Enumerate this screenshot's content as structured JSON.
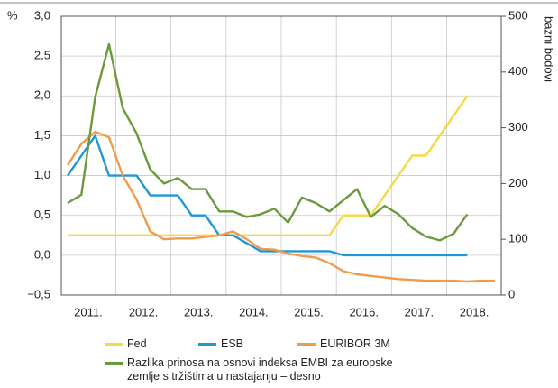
{
  "chart_data": {
    "type": "line",
    "y_label": "%",
    "y2_label": "bazni bodovi",
    "categories": [
      null,
      "2011.",
      null,
      null,
      null,
      "2012.",
      null,
      null,
      null,
      "2013.",
      null,
      null,
      null,
      "2014.",
      null,
      null,
      null,
      "2015.",
      null,
      null,
      null,
      "2016.",
      null,
      null,
      null,
      "2017.",
      null,
      null,
      null,
      "2018.",
      null,
      null
    ],
    "ylim": [
      -0.5,
      3.0
    ],
    "yticks": [
      {
        "value": -0.5,
        "label": "−0,5"
      },
      {
        "value": 0,
        "label": "0,0"
      },
      {
        "value": 0.5,
        "label": "0,5"
      },
      {
        "value": 1.0,
        "label": "1,0"
      },
      {
        "value": 1.5,
        "label": "1,5"
      },
      {
        "value": 2.0,
        "label": "2,0"
      },
      {
        "value": 2.5,
        "label": "2,5"
      },
      {
        "value": 3.0,
        "label": "3,0"
      }
    ],
    "y2lim": [
      0,
      500
    ],
    "y2ticks": [
      0,
      100,
      200,
      300,
      400,
      500
    ],
    "grid": true,
    "legend": "bottom",
    "series": [
      {
        "name": "Fed",
        "color": "#f6d943",
        "values": [
          0.25,
          0.25,
          0.25,
          0.25,
          0.25,
          0.25,
          0.25,
          0.25,
          0.25,
          0.25,
          0.25,
          0.25,
          0.25,
          0.25,
          0.25,
          0.25,
          0.25,
          0.25,
          0.25,
          0.25,
          0.5,
          0.5,
          0.5,
          0.75,
          1.0,
          1.25,
          1.25,
          1.5,
          1.75,
          2.0,
          null,
          null
        ]
      },
      {
        "name": "ESB",
        "color": "#1f97d4",
        "values": [
          1.0,
          1.25,
          1.5,
          1.0,
          1.0,
          1.0,
          0.75,
          0.75,
          0.75,
          0.5,
          0.5,
          0.25,
          0.25,
          0.15,
          0.05,
          0.05,
          0.05,
          0.05,
          0.05,
          0.05,
          0.0,
          0.0,
          0.0,
          0.0,
          0.0,
          0.0,
          0.0,
          0.0,
          0.0,
          0.0,
          null,
          null
        ]
      },
      {
        "name": "EURIBOR 3M",
        "color": "#f29a4b",
        "values": [
          1.13,
          1.4,
          1.55,
          1.48,
          1.0,
          0.7,
          0.3,
          0.2,
          0.21,
          0.21,
          0.23,
          0.25,
          0.3,
          0.2,
          0.08,
          0.07,
          0.02,
          -0.01,
          -0.03,
          -0.1,
          -0.2,
          -0.24,
          -0.26,
          -0.28,
          -0.3,
          -0.31,
          -0.32,
          -0.32,
          -0.32,
          -0.33,
          -0.32,
          -0.32
        ]
      },
      {
        "name": "Razlika prinosa na osnovi indeksa EMBI za europske zemlje s tržištima u nastajanju – desno",
        "color": "#6b9a3b",
        "axis": "y2",
        "values": [
          165,
          180,
          355,
          450,
          335,
          290,
          225,
          200,
          210,
          190,
          190,
          150,
          150,
          140,
          145,
          155,
          130,
          175,
          165,
          150,
          170,
          190,
          140,
          160,
          145,
          120,
          105,
          98,
          110,
          145,
          null,
          null
        ]
      }
    ]
  }
}
